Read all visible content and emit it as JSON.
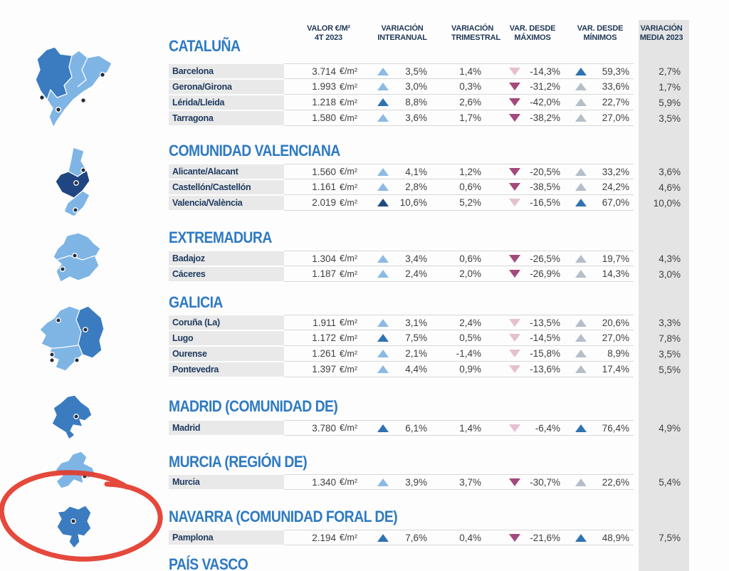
{
  "table": {
    "unit": "€/m²",
    "columns": [
      {
        "line1": "VALOR €/M²",
        "line2": "4T 2023"
      },
      {
        "line1": "VARIACIÓN",
        "line2": "INTERANUAL"
      },
      {
        "line1": "VARIACIÓN",
        "line2": "TRIMESTRAL"
      },
      {
        "line1": "VAR. DESDE",
        "line2": "MÁXIMOS"
      },
      {
        "line1": "VAR. DESDE",
        "line2": "MÍNIMOS"
      },
      {
        "line1": "VARIACIÓN",
        "line2": "MEDIA 2023"
      }
    ],
    "sections": [
      {
        "title": "CATALUÑA",
        "map": "cataluna",
        "rows": [
          {
            "name": "Barcelona",
            "valor": "3.714",
            "inter_trend": "up-light",
            "inter": "3,5%",
            "trim": "1,4%",
            "max_trend": "down-light",
            "max": "-14,3%",
            "min_trend": "up-medium",
            "min": "59,3%",
            "media": "2,7%"
          },
          {
            "name": "Gerona/Girona",
            "valor": "1.993",
            "inter_trend": "up-light",
            "inter": "3,0%",
            "trim": "0,3%",
            "max_trend": "down-dark",
            "max": "-31,2%",
            "min_trend": "up-gray",
            "min": "33,6%",
            "media": "1,7%"
          },
          {
            "name": "Lérida/Lleida",
            "valor": "1.218",
            "inter_trend": "up-medium",
            "inter": "8,8%",
            "trim": "2,6%",
            "max_trend": "down-dark",
            "max": "-42,0%",
            "min_trend": "up-gray",
            "min": "22,7%",
            "media": "5,9%"
          },
          {
            "name": "Tarragona",
            "valor": "1.580",
            "inter_trend": "up-light",
            "inter": "3,6%",
            "trim": "1,7%",
            "max_trend": "down-dark",
            "max": "-38,2%",
            "min_trend": "up-gray",
            "min": "27,0%",
            "media": "3,5%"
          }
        ]
      },
      {
        "title": "COMUNIDAD VALENCIANA",
        "map": "valenciana",
        "rows": [
          {
            "name": "Alicante/Alacant",
            "valor": "1.560",
            "inter_trend": "up-light",
            "inter": "4,1%",
            "trim": "1,2%",
            "max_trend": "down-dark",
            "max": "-20,5%",
            "min_trend": "up-gray",
            "min": "33,2%",
            "media": "3,6%"
          },
          {
            "name": "Castellón/Castellón",
            "valor": "1.161",
            "inter_trend": "up-light",
            "inter": "2,8%",
            "trim": "0,6%",
            "max_trend": "down-dark",
            "max": "-38,5%",
            "min_trend": "up-gray",
            "min": "24,2%",
            "media": "4,6%"
          },
          {
            "name": "Valencia/València",
            "valor": "2.019",
            "inter_trend": "up-dark",
            "inter": "10,6%",
            "trim": "5,2%",
            "max_trend": "down-light",
            "max": "-16,5%",
            "min_trend": "up-medium",
            "min": "67,0%",
            "media": "10,0%"
          }
        ]
      },
      {
        "title": "EXTREMADURA",
        "map": "extremadura",
        "rows": [
          {
            "name": "Badajoz",
            "valor": "1.304",
            "inter_trend": "up-light",
            "inter": "3,4%",
            "trim": "0,6%",
            "max_trend": "down-dark",
            "max": "-26,5%",
            "min_trend": "up-gray",
            "min": "19,7%",
            "media": "4,3%"
          },
          {
            "name": "Cáceres",
            "valor": "1.187",
            "inter_trend": "up-light",
            "inter": "2,4%",
            "trim": "2,0%",
            "max_trend": "down-dark",
            "max": "-26,9%",
            "min_trend": "up-gray",
            "min": "14,3%",
            "media": "3,0%"
          }
        ]
      },
      {
        "title": "GALICIA",
        "map": "galicia",
        "rows": [
          {
            "name": "Coruña (La)",
            "valor": "1.911",
            "inter_trend": "up-light",
            "inter": "3,1%",
            "trim": "2,4%",
            "max_trend": "down-light",
            "max": "-13,5%",
            "min_trend": "up-gray",
            "min": "20,6%",
            "media": "3,3%"
          },
          {
            "name": "Lugo",
            "valor": "1.172",
            "inter_trend": "up-medium",
            "inter": "7,5%",
            "trim": "0,5%",
            "max_trend": "down-light",
            "max": "-14,5%",
            "min_trend": "up-gray",
            "min": "27,0%",
            "media": "7,8%"
          },
          {
            "name": "Ourense",
            "valor": "1.261",
            "inter_trend": "up-light",
            "inter": "2,1%",
            "trim": "-1,4%",
            "max_trend": "down-light",
            "max": "-15,8%",
            "min_trend": "up-gray",
            "min": "8,9%",
            "media": "3,5%"
          },
          {
            "name": "Pontevedra",
            "valor": "1.397",
            "inter_trend": "up-light",
            "inter": "4,4%",
            "trim": "0,9%",
            "max_trend": "down-light",
            "max": "-13,6%",
            "min_trend": "up-gray",
            "min": "17,4%",
            "media": "5,5%"
          }
        ]
      },
      {
        "title": "MADRID (COMUNIDAD DE)",
        "map": "madrid",
        "rows": [
          {
            "name": "Madrid",
            "valor": "3.780",
            "inter_trend": "up-medium",
            "inter": "6,1%",
            "trim": "1,4%",
            "max_trend": "down-light",
            "max": "-6,4%",
            "min_trend": "up-medium",
            "min": "76,4%",
            "media": "4,9%"
          }
        ]
      },
      {
        "title": "MURCIA (REGIÓN DE)",
        "map": "murcia",
        "rows": [
          {
            "name": "Murcia",
            "valor": "1.340",
            "inter_trend": "up-light",
            "inter": "3,9%",
            "trim": "3,7%",
            "max_trend": "down-dark",
            "max": "-30,7%",
            "min_trend": "up-gray",
            "min": "22,6%",
            "media": "5,4%"
          }
        ]
      },
      {
        "title": "NAVARRA (COMUNIDAD FORAL DE)",
        "map": "navarra",
        "circled": true,
        "rows": [
          {
            "name": "Pamplona",
            "valor": "2.194",
            "inter_trend": "up-medium",
            "inter": "7,6%",
            "trim": "0,4%",
            "max_trend": "down-dark",
            "max": "-21,6%",
            "min_trend": "up-medium",
            "min": "48,9%",
            "media": "7,5%"
          }
        ]
      },
      {
        "title": "PAÍS VASCO",
        "map": null,
        "rows": []
      }
    ]
  },
  "annotation": {
    "type": "hand-drawn-circle",
    "target": "NAVARRA (COMUNIDAD FORAL DE)",
    "color": "#E2392B"
  },
  "colors": {
    "title_blue": "#2E7AC3",
    "label_navy": "#1E3A5F",
    "header_navy": "#1F3756",
    "value_gray": "#3F3F3F",
    "row_label_bg": "#E9E9E9",
    "media_band_bg": "#E4E4E4",
    "divider": "#D8D8D8",
    "map_light": "#7FB5E5",
    "map_medium": "#3B7CC0",
    "map_dark": "#1F4680",
    "map_dot": "#262B36",
    "annotation_red": "#E2392B",
    "trends": {
      "up-light": "#8CBAE4",
      "up-medium": "#2F72B4",
      "up-dark": "#1E4B7E",
      "up-gray": "#B4BFCA",
      "down-light": "#E6C0D1",
      "down-dark": "#A4497B"
    }
  }
}
